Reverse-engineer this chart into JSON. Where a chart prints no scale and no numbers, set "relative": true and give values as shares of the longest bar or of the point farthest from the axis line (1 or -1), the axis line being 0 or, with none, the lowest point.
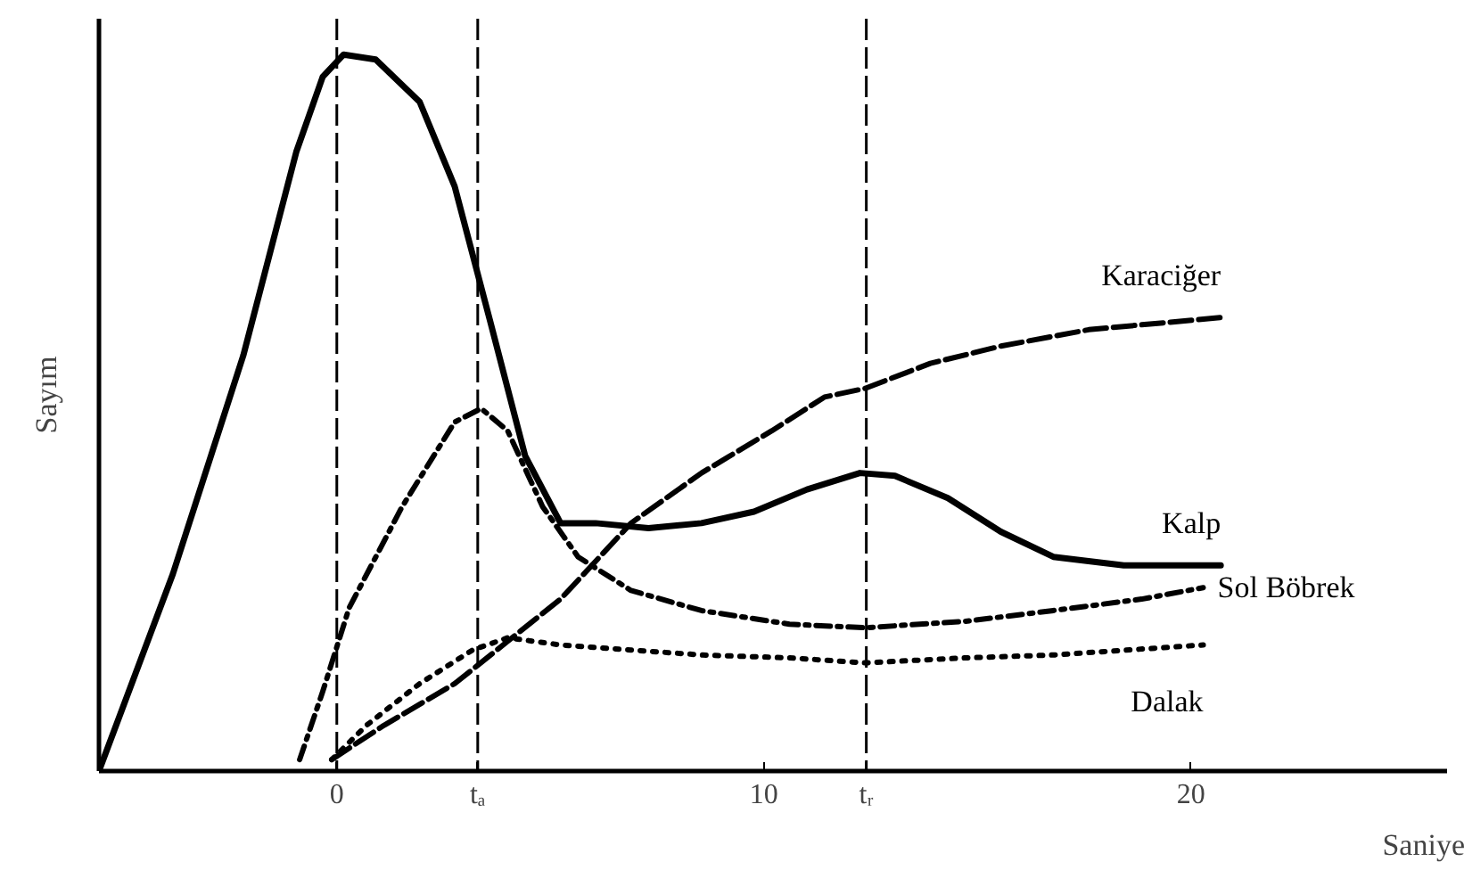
{
  "chart_data": {
    "type": "line",
    "relative": true,
    "xlabel": "Saniye",
    "ylabel": "Sayım",
    "xlim": [
      -5.57,
      26
    ],
    "xticks": [
      0,
      {
        "value": 3.3,
        "label": "tₐ"
      },
      10,
      {
        "value": 12.4,
        "label": "tᵣ"
      },
      20
    ],
    "grid": false,
    "color": "#000000",
    "ref_lines": [
      {
        "axis": "x",
        "value": 0,
        "line_style": "dashed"
      },
      {
        "axis": "x",
        "value": 3.3,
        "line_style": "dashed"
      },
      {
        "axis": "x",
        "value": 12.4,
        "line_style": "dashed"
      }
    ],
    "series": [
      {
        "name": "Karaciğer",
        "color": "#000000",
        "line_style": "dashed",
        "x": [
          -0.12,
          1.11,
          2.76,
          4.0,
          5.24,
          6.89,
          8.54,
          10.19,
          11.42,
          12.37,
          13.9,
          15.55,
          17.61,
          20.7
        ],
        "values": [
          0.016,
          0.064,
          0.122,
          0.181,
          0.24,
          0.346,
          0.416,
          0.475,
          0.522,
          0.534,
          0.569,
          0.593,
          0.616,
          0.633
        ]
      },
      {
        "name": "Kalp",
        "color": "#000000",
        "line_style": "solid",
        "x": [
          -5.57,
          -3.84,
          -2.19,
          -0.95,
          -0.33,
          0.16,
          0.91,
          1.94,
          2.76,
          3.59,
          4.41,
          5.24,
          6.06,
          7.3,
          8.54,
          9.77,
          11.01,
          12.25,
          13.07,
          14.31,
          15.55,
          16.78,
          18.43,
          20.7
        ],
        "values": [
          0,
          0.275,
          0.58,
          0.864,
          0.969,
          1.0,
          0.993,
          0.934,
          0.816,
          0.628,
          0.44,
          0.346,
          0.346,
          0.339,
          0.346,
          0.362,
          0.393,
          0.416,
          0.412,
          0.381,
          0.334,
          0.299,
          0.287,
          0.287
        ]
      },
      {
        "name": "Sol Böbrek",
        "color": "#000000",
        "line_style": "dashdot",
        "x": [
          -0.87,
          -0.33,
          0.29,
          1.53,
          2.76,
          3.38,
          4.0,
          4.82,
          5.65,
          6.89,
          8.54,
          10.6,
          12.37,
          14.72,
          16.78,
          18.85,
          20.29
        ],
        "values": [
          0.016,
          0.111,
          0.228,
          0.369,
          0.487,
          0.506,
          0.475,
          0.369,
          0.299,
          0.252,
          0.224,
          0.205,
          0.2,
          0.209,
          0.224,
          0.24,
          0.256
        ]
      },
      {
        "name": "Dalak",
        "color": "#000000",
        "line_style": "dotted",
        "x": [
          -0.12,
          0.7,
          1.94,
          3.18,
          4.0,
          5.24,
          6.89,
          8.54,
          10.6,
          12.37,
          14.72,
          16.78,
          20.29
        ],
        "values": [
          0.016,
          0.064,
          0.122,
          0.169,
          0.186,
          0.176,
          0.169,
          0.162,
          0.158,
          0.151,
          0.158,
          0.162,
          0.176
        ]
      }
    ]
  }
}
